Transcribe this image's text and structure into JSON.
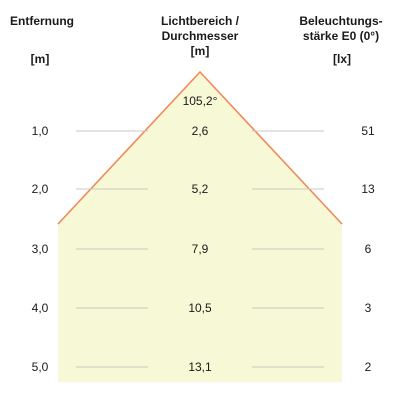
{
  "headers": {
    "distance": {
      "title": "Entfernung",
      "unit": "[m]"
    },
    "beam": {
      "title_line1": "Lichtbereich /",
      "title_line2": "Durchmesser",
      "unit": "[m]"
    },
    "illuminance": {
      "title_line1": "Beleuchtungs-",
      "title_line2": "stärke E0 (0°)",
      "unit": "[lx]"
    }
  },
  "beam_angle": "105,2°",
  "rows": [
    {
      "distance": "1,0",
      "diameter": "2,6",
      "lux": "51"
    },
    {
      "distance": "2,0",
      "diameter": "5,2",
      "lux": "13"
    },
    {
      "distance": "3,0",
      "diameter": "7,9",
      "lux": "6"
    },
    {
      "distance": "4,0",
      "diameter": "10,5",
      "lux": "3"
    },
    {
      "distance": "5,0",
      "diameter": "13,1",
      "lux": "2"
    }
  ],
  "colors": {
    "beam_fill": "#f7f8d6",
    "beam_edge": "#f0895a",
    "grid_line": "#c8c8c8"
  }
}
